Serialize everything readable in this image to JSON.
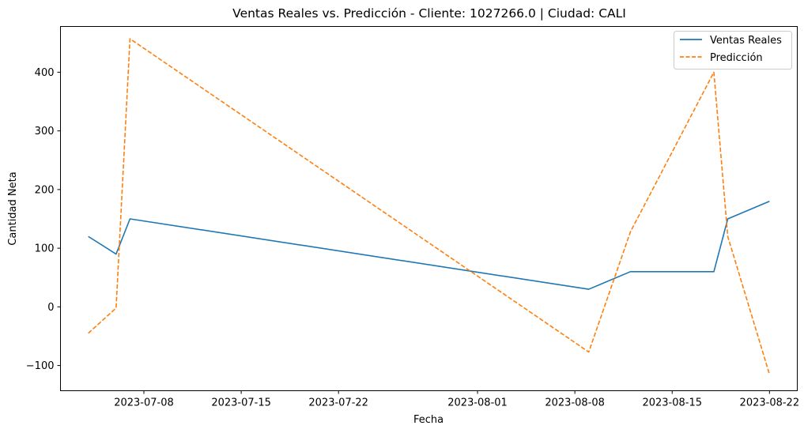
{
  "chart_data": {
    "type": "line",
    "title": "Ventas Reales vs. Predicción - Cliente: 1027266.0 | Ciudad: CALI",
    "xlabel": "Fecha",
    "ylabel": "Cantidad Neta",
    "x_ticks": [
      "2023-07-08",
      "2023-07-15",
      "2023-07-22",
      "2023-08-01",
      "2023-08-08",
      "2023-08-15",
      "2023-08-22"
    ],
    "y_ticks": [
      -100,
      0,
      100,
      200,
      300,
      400
    ],
    "y_tick_labels": [
      "−100",
      "0",
      "100",
      "200",
      "300",
      "400"
    ],
    "xlim": [
      "2023-07-02",
      "2023-08-24"
    ],
    "ylim": [
      -143,
      478
    ],
    "legend_position": "top-right",
    "series": [
      {
        "name": "Ventas Reales",
        "color": "#1f77b4",
        "style": "solid",
        "points": [
          {
            "x": "2023-07-04",
            "y": 120
          },
          {
            "x": "2023-07-06",
            "y": 90
          },
          {
            "x": "2023-07-07",
            "y": 150
          },
          {
            "x": "2023-08-09",
            "y": 30
          },
          {
            "x": "2023-08-12",
            "y": 60
          },
          {
            "x": "2023-08-18",
            "y": 60
          },
          {
            "x": "2023-08-19",
            "y": 150
          },
          {
            "x": "2023-08-22",
            "y": 180
          }
        ]
      },
      {
        "name": "Predicción",
        "color": "#ff7f0e",
        "style": "dashed",
        "points": [
          {
            "x": "2023-07-04",
            "y": -45
          },
          {
            "x": "2023-07-06",
            "y": -2
          },
          {
            "x": "2023-07-07",
            "y": 457
          },
          {
            "x": "2023-08-09",
            "y": -77
          },
          {
            "x": "2023-08-12",
            "y": 128
          },
          {
            "x": "2023-08-18",
            "y": 400
          },
          {
            "x": "2023-08-19",
            "y": 120
          },
          {
            "x": "2023-08-22",
            "y": -115
          }
        ]
      }
    ]
  }
}
